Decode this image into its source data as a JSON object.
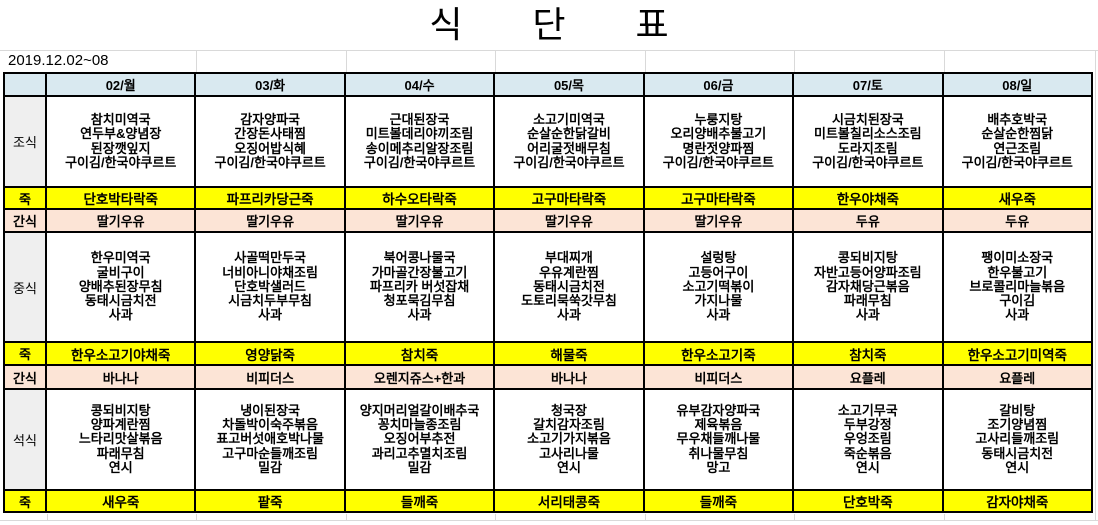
{
  "title": "식 단 표",
  "date_range": "2019.12.02~08",
  "columns": [
    "02/월",
    "03/화",
    "04/수",
    "05/목",
    "06/금",
    "07/토",
    "08/일"
  ],
  "rows": [
    {
      "key": "breakfast",
      "label": "조식",
      "type": "meal",
      "cells": [
        [
          "참치미역국",
          "연두부&양념장",
          "된장깻잎지",
          "구이김/한국야쿠르트"
        ],
        [
          "감자양파국",
          "간장돈사태찜",
          "오징어밥식혜",
          "구이김/한국야쿠르트"
        ],
        [
          "근대된장국",
          "미트볼데리야끼조림",
          "송이메추리알장조림",
          "구이김/한국야쿠르트"
        ],
        [
          "소고기미역국",
          "순살순한닭갈비",
          "어리굴젓배무침",
          "구이김/한국야쿠르트"
        ],
        [
          "누룽지탕",
          "오리양배추불고기",
          "명란젓양파찜",
          "구이김/한국야쿠르트"
        ],
        [
          "시금치된장국",
          "미트볼칠리소스조림",
          "도라지조림",
          "구이김/한국야쿠르트"
        ],
        [
          "배추호박국",
          "순살순한찜닭",
          "연근조림",
          "구이김/한국야쿠르트"
        ]
      ]
    },
    {
      "key": "porridge-1",
      "label": "죽",
      "type": "porridge",
      "cells": [
        "단호박타락죽",
        "파프리카당근죽",
        "하수오타락죽",
        "고구마타락죽",
        "고구마타락죽",
        "한우야채죽",
        "새우죽"
      ]
    },
    {
      "key": "snack-1",
      "label": "간식",
      "type": "snack",
      "cells": [
        "딸기우유",
        "딸기우유",
        "딸기우유",
        "딸기우유",
        "딸기우유",
        "두유",
        "두유"
      ]
    },
    {
      "key": "lunch",
      "label": "중식",
      "type": "meal",
      "cells": [
        [
          "한우미역국",
          "굴비구이",
          "양배추된장무침",
          "동태시금치전",
          "사과"
        ],
        [
          "사골떡만두국",
          "너비아니야채조림",
          "단호박샐러드",
          "시금치두부무침",
          "사과"
        ],
        [
          "북어콩나물국",
          "가마골간장불고기",
          "파프리카 버섯잡채",
          "청포묵김무침",
          "사과"
        ],
        [
          "부대찌개",
          "우유계란찜",
          "동태시금치전",
          "도토리묵쑥갓무침",
          "사과"
        ],
        [
          "설렁탕",
          "고등어구이",
          "소고기떡볶이",
          "가지나물",
          "사과"
        ],
        [
          "콩되비지탕",
          "자반고등어양파조림",
          "감자채당근볶음",
          "파래무침",
          "사과"
        ],
        [
          "팽이미소장국",
          "한우불고기",
          "브로콜리마늘볶음",
          "구이김",
          "사과"
        ]
      ]
    },
    {
      "key": "porridge-2",
      "label": "죽",
      "type": "porridge",
      "cells": [
        "한우소고기야채죽",
        "영양닭죽",
        "참치죽",
        "해물죽",
        "한우소고기죽",
        "참치죽",
        "한우소고기미역죽"
      ]
    },
    {
      "key": "snack-2",
      "label": "간식",
      "type": "snack",
      "cells": [
        "바나나",
        "비피더스",
        "오렌지쥬스+한과",
        "바나나",
        "비피더스",
        "요플레",
        "요플레"
      ]
    },
    {
      "key": "dinner",
      "label": "석식",
      "type": "meal",
      "cells": [
        [
          "콩되비지탕",
          "양파계란찜",
          "느타리맛살볶음",
          "파래무침",
          "연시"
        ],
        [
          "냉이된장국",
          "차돌박이숙주볶음",
          "표고버섯애호박나물",
          "고구마순들깨조림",
          "밀감"
        ],
        [
          "양지머리얼갈이배추국",
          "꽁치마늘종조림",
          "오징어부추전",
          "과리고추멸치조림",
          "밀감"
        ],
        [
          "청국장",
          "갈치감자조림",
          "소고기가지볶음",
          "고사리나물",
          "연시"
        ],
        [
          "유부감자양파국",
          "제육볶음",
          "무우채들깨나물",
          "취나물무침",
          "망고"
        ],
        [
          "소고기무국",
          "두부강정",
          "우엉조림",
          "죽순볶음",
          "연시"
        ],
        [
          "갈비탕",
          "조기양념찜",
          "고사리들깨조림",
          "동태시금치전",
          "연시"
        ]
      ]
    },
    {
      "key": "porridge-3",
      "label": "죽",
      "type": "porridge",
      "cells": [
        "새우죽",
        "팥죽",
        "들깨죽",
        "서리태콩죽",
        "들깨죽",
        "단호박죽",
        "감자야채죽"
      ]
    }
  ],
  "colors": {
    "header_bg": "#d9e9f0",
    "porridge_bg": "#ffff00",
    "snack_bg": "#fce4d6",
    "label_bg": "#efefef",
    "border": "#000000",
    "gridline": "#d9d9d9"
  }
}
